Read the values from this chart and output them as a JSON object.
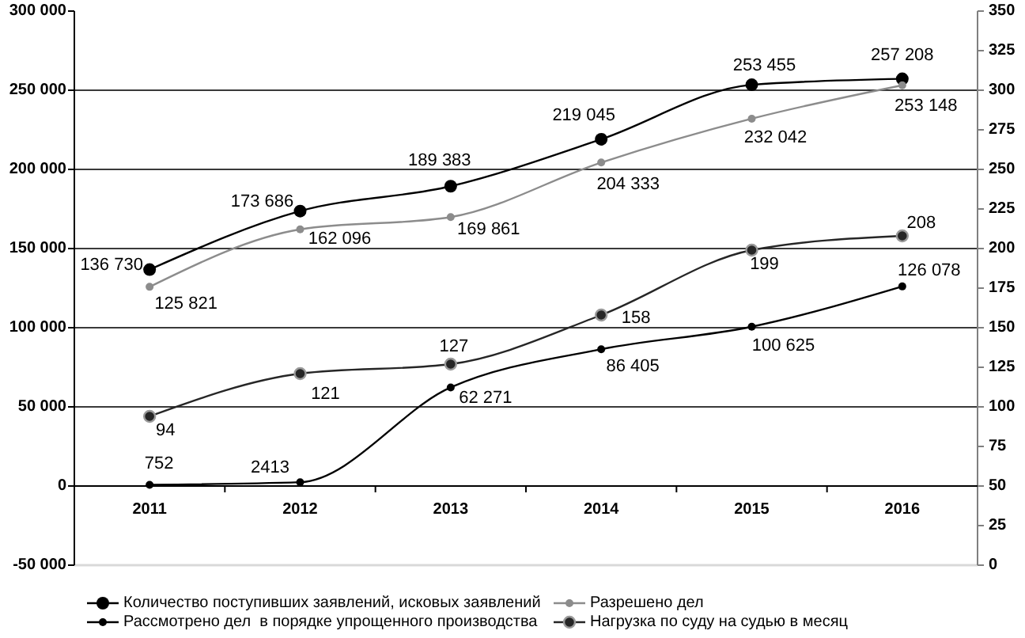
{
  "chart_data": {
    "type": "line",
    "categories": [
      "2011",
      "2012",
      "2013",
      "2014",
      "2015",
      "2016"
    ],
    "series": [
      {
        "name": "Количество поступивших заявлений, исковых заявлений",
        "color": "#000000",
        "values": [
          136730,
          173686,
          189383,
          219045,
          253455,
          257208
        ],
        "value_labels": [
          "136 730",
          "173 686",
          "189 383",
          "219 045",
          "253 455",
          "257 208"
        ]
      },
      {
        "name": "Разрешено дел",
        "color": "#8c8c8c",
        "values": [
          125821,
          162096,
          169861,
          204333,
          232042,
          253148
        ],
        "value_labels": [
          "125 821",
          "162 096",
          "169 861",
          "204 333",
          "232 042",
          "253 148"
        ]
      },
      {
        "name": "Рассмотрено дел  в порядке упрощенного производства",
        "color": "#000000",
        "values": [
          752,
          2413,
          62271,
          86405,
          100625,
          126078
        ],
        "value_labels": [
          "752",
          "2413",
          "62 271",
          "86 405",
          "100 625",
          "126 078"
        ]
      },
      {
        "name": "Нагрузка по суду на судью в месяц",
        "color": "#262626",
        "axis": "y2",
        "values": [
          94,
          121,
          127,
          158,
          199,
          208
        ],
        "value_labels": [
          "94",
          "121",
          "127",
          "158",
          "199",
          "208"
        ]
      }
    ],
    "ylim": [
      -50000,
      300000
    ],
    "yticks": [
      {
        "value": -50000,
        "label": "-50 000"
      },
      0,
      {
        "value": 50000,
        "label": "50 000"
      },
      {
        "value": 100000,
        "label": "100 000"
      },
      {
        "value": 150000,
        "label": "150 000"
      },
      {
        "value": 200000,
        "label": "200 000"
      },
      {
        "value": 250000,
        "label": "250 000"
      },
      {
        "value": 300000,
        "label": "300 000"
      }
    ],
    "y2lim": [
      0,
      350
    ],
    "y2ticks": [
      0,
      25,
      50,
      75,
      100,
      125,
      150,
      175,
      200,
      225,
      250,
      275,
      300,
      325,
      350
    ],
    "grid": "y",
    "legend": "bottom",
    "marker": "circle",
    "line_style": "solid"
  }
}
